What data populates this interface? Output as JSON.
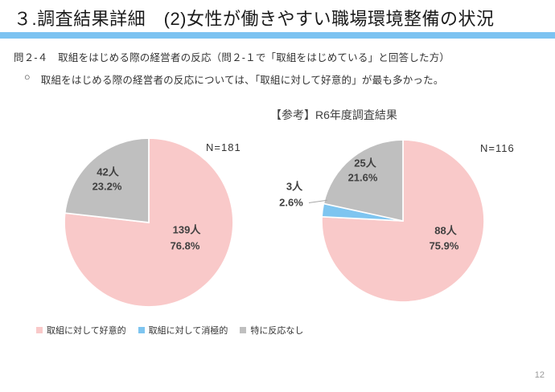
{
  "page": {
    "title": "３.調査結果詳細　(2)女性が働きやすい職場環境整備の状況",
    "accent_bar_color": "#7CC3F1",
    "page_number": "12"
  },
  "question": {
    "heading": "問２-４　取組をはじめる際の経営者の反応（問２-１で「取組をはじめている」と回答した方）",
    "bullet_marker": "○",
    "bullet_text": "取組をはじめる際の経営者の反応については、「取組に対して好意的」が最も多かった。"
  },
  "reference_label": "【参考】R6年度調査結果",
  "legend": [
    {
      "label": "取組に対して好意的",
      "color": "#F9C9C9"
    },
    {
      "label": "取組に対して消極的",
      "color": "#7EC5F0"
    },
    {
      "label": "特に反応なし",
      "color": "#BFBFBF"
    }
  ],
  "chart_data": [
    {
      "type": "pie",
      "n_label": "N=181",
      "start_angle": "top",
      "direction": "clockwise",
      "slices": [
        {
          "label": "取組に対して好意的",
          "count": 139,
          "count_label": "139人",
          "pct": 76.8,
          "pct_label": "76.8%",
          "color": "#F9C9C9"
        },
        {
          "label": "特に反応なし",
          "count": 42,
          "count_label": "42人",
          "pct": 23.2,
          "pct_label": "23.2%",
          "color": "#BFBFBF"
        }
      ]
    },
    {
      "type": "pie",
      "n_label": "N=116",
      "start_angle": "top",
      "direction": "clockwise",
      "slices": [
        {
          "label": "取組に対して好意的",
          "count": 88,
          "count_label": "88人",
          "pct": 75.9,
          "pct_label": "75.9%",
          "color": "#F9C9C9"
        },
        {
          "label": "取組に対して消極的",
          "count": 3,
          "count_label": "3人",
          "pct": 2.6,
          "pct_label": "2.6%",
          "color": "#7EC5F0"
        },
        {
          "label": "特に反応なし",
          "count": 25,
          "count_label": "25人",
          "pct": 21.6,
          "pct_label": "21.6%",
          "color": "#BFBFBF"
        }
      ]
    }
  ]
}
